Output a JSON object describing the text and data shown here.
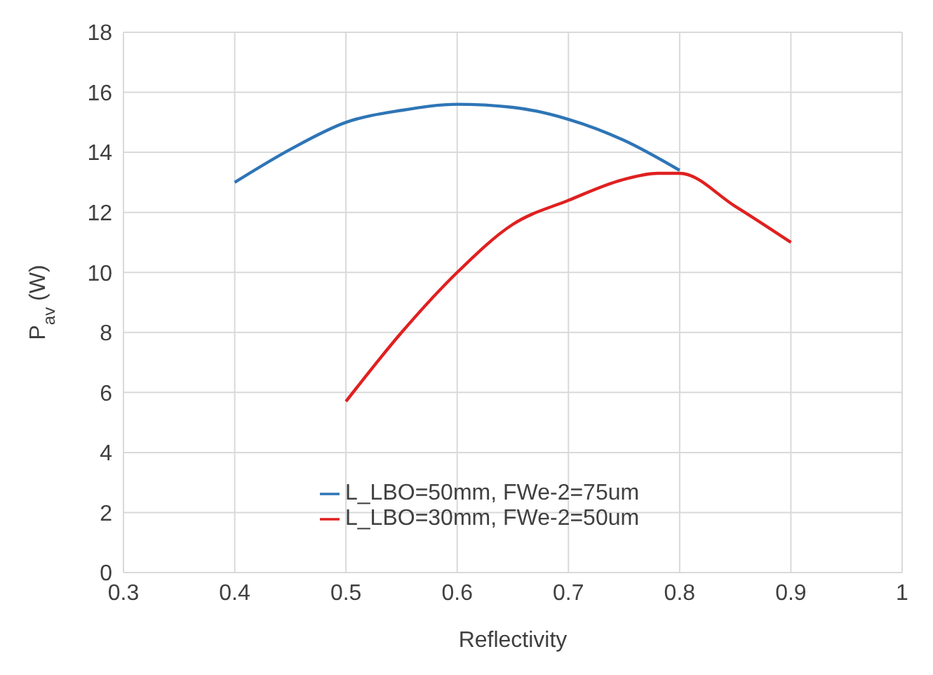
{
  "chart_data": {
    "type": "line",
    "xlabel": "Reflectivity",
    "ylabel": "P$_{av}$ (W)",
    "xlim": [
      0.3,
      1
    ],
    "xticks": [
      0.3,
      0.4,
      0.5,
      0.6,
      0.7,
      0.8,
      0.9,
      1
    ],
    "ylim": [
      0,
      18
    ],
    "yticks": [
      0,
      2,
      4,
      6,
      8,
      10,
      12,
      14,
      16,
      18
    ],
    "grid": true,
    "legend": "bottom",
    "marker": "none",
    "line_style": "solid",
    "series": [
      {
        "name": "L_LBO=50mm, FWe-2=75um",
        "color": "#2e75b6",
        "x": [
          0.4,
          0.45,
          0.5,
          0.55,
          0.6,
          0.65,
          0.7,
          0.75,
          0.8
        ],
        "values": [
          13.0,
          14.1,
          15.0,
          15.4,
          15.6,
          15.5,
          15.1,
          14.4,
          13.4
        ]
      },
      {
        "name": "L_LBO=30mm, FWe-2=50um",
        "color": "#e02020",
        "x": [
          0.5,
          0.55,
          0.6,
          0.65,
          0.7,
          0.75,
          0.78,
          0.8,
          0.85,
          0.9
        ],
        "values": [
          5.7,
          8.0,
          10.0,
          11.6,
          12.4,
          13.1,
          13.3,
          13.3,
          12.2,
          11.0
        ]
      }
    ]
  }
}
